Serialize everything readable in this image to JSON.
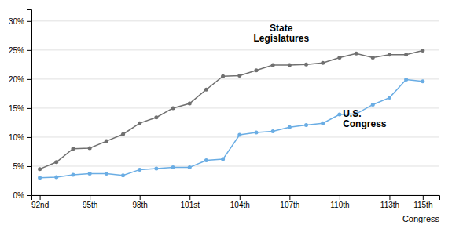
{
  "chart_data": {
    "type": "line",
    "xlabel": "Congress",
    "x": [
      92,
      93,
      94,
      95,
      96,
      97,
      98,
      99,
      100,
      101,
      102,
      103,
      104,
      105,
      106,
      107,
      108,
      109,
      110,
      111,
      112,
      113,
      114,
      115
    ],
    "series": [
      {
        "color": "#707070",
        "marker": "circle",
        "values": [
          4.5,
          5.7,
          8.0,
          8.1,
          9.3,
          10.5,
          12.4,
          13.4,
          15.0,
          15.8,
          18.2,
          20.5,
          20.6,
          21.5,
          22.4,
          22.4,
          22.5,
          22.8,
          23.7,
          24.4,
          23.7,
          24.2,
          24.2,
          24.9
        ]
      },
      {
        "color": "#6aade4",
        "marker": "circle",
        "values": [
          3.0,
          3.1,
          3.5,
          3.7,
          3.7,
          3.4,
          4.4,
          4.6,
          4.8,
          4.8,
          6.0,
          6.2,
          10.4,
          10.8,
          11.0,
          11.7,
          12.1,
          12.4,
          13.9,
          14.0,
          15.6,
          16.8,
          19.9,
          19.6
        ]
      }
    ],
    "annotations": [
      {
        "text": "State\nLegislatures",
        "x": 106.5,
        "y": 26.0
      },
      {
        "text": "U.S.\nCongress",
        "x": 110.2,
        "y": 14.8
      }
    ],
    "xlim": [
      91.5,
      116
    ],
    "xticks": [
      {
        "value": 92,
        "label": "92nd"
      },
      {
        "value": 95,
        "label": "95th"
      },
      {
        "value": 98,
        "label": "98th"
      },
      {
        "value": 101,
        "label": "101st"
      },
      {
        "value": 104,
        "label": "104th"
      },
      {
        "value": 107,
        "label": "107th"
      },
      {
        "value": 110,
        "label": "110th"
      },
      {
        "value": 113,
        "label": "113th"
      },
      {
        "value": 115,
        "label": "115th"
      }
    ],
    "ylim": [
      0,
      32
    ],
    "yticks": [
      {
        "value": 0,
        "label": "0%"
      },
      {
        "value": 5,
        "label": "5%"
      },
      {
        "value": 10,
        "label": "10%"
      },
      {
        "value": 15,
        "label": "15%"
      },
      {
        "value": 20,
        "label": "20%"
      },
      {
        "value": 25,
        "label": "25%"
      },
      {
        "value": 30,
        "label": "30%"
      }
    ],
    "grid": true
  }
}
